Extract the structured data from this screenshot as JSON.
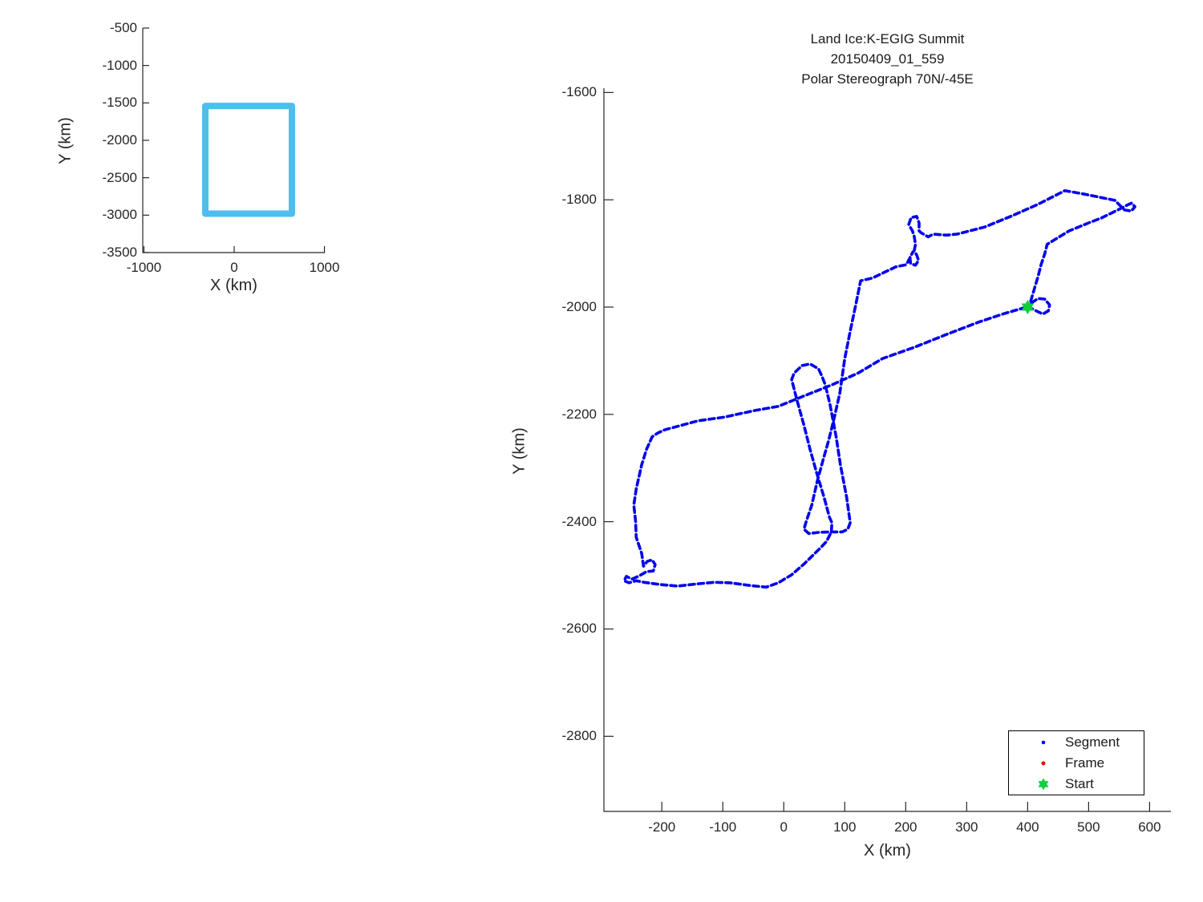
{
  "background_color": "#ffffff",
  "chart_data": [
    {
      "id": "overview_map",
      "type": "line",
      "title": "",
      "xlabel": "X (km)",
      "ylabel": "Y (km)",
      "xlim": [
        -1013,
        1004
      ],
      "ylim": [
        -3500,
        -500
      ],
      "xticks": [
        -1000,
        0,
        1000
      ],
      "yticks": [
        -500,
        -1000,
        -1500,
        -2000,
        -2500,
        -3000,
        -3500
      ],
      "grid": false,
      "series": [
        {
          "name": "coverage-box",
          "color": "#4DBEEE",
          "linewidth": 8,
          "points": [
            [
              -320,
              -1540
            ],
            [
              640,
              -1540
            ],
            [
              640,
              -2980
            ],
            [
              -320,
              -2980
            ],
            [
              -320,
              -1540
            ]
          ]
        }
      ]
    },
    {
      "id": "flight-track",
      "type": "line",
      "title_lines": [
        "Land Ice:K-EGIG Summit",
        "20150409_01_559",
        "Polar Stereograph 70N/-45E"
      ],
      "xlabel": "X (km)",
      "ylabel": "Y (km)",
      "xlim": [
        -295,
        635
      ],
      "ylim": [
        -2940,
        -1592
      ],
      "xticks": [
        -200,
        -100,
        0,
        100,
        200,
        300,
        400,
        500,
        600
      ],
      "yticks": [
        -1600,
        -1800,
        -2000,
        -2200,
        -2400,
        -2600,
        -2800
      ],
      "grid": false,
      "axis_color": "#262626",
      "legend": [
        {
          "label": "Segment",
          "color": "#0000EE",
          "marker": "dot"
        },
        {
          "label": "Frame",
          "color": "#FF0000",
          "marker": "dot"
        },
        {
          "label": "Start",
          "color": "#10CE3C",
          "marker": "hexagram"
        }
      ],
      "legend_position": "bottom-right",
      "start_point": [
        400,
        -2000
      ],
      "series": [
        {
          "name": "Segment",
          "color": "#0000EE",
          "style": "dashed",
          "linewidth": 3.6,
          "points": [
            [
              400,
              -1999
            ],
            [
              414,
              -2007
            ],
            [
              425,
              -2013
            ],
            [
              434,
              -2007
            ],
            [
              436,
              -1996
            ],
            [
              428,
              -1985
            ],
            [
              417,
              -1984
            ],
            [
              408,
              -1991
            ],
            [
              404,
              -1993
            ],
            [
              411,
              -1966
            ],
            [
              417,
              -1943
            ],
            [
              422,
              -1921
            ],
            [
              428,
              -1901
            ],
            [
              432,
              -1883
            ],
            [
              442,
              -1876
            ],
            [
              468,
              -1858
            ],
            [
              500,
              -1843
            ],
            [
              521,
              -1834
            ],
            [
              553,
              -1816
            ],
            [
              563,
              -1810
            ],
            [
              571,
              -1806
            ],
            [
              576,
              -1813
            ],
            [
              570,
              -1821
            ],
            [
              559,
              -1819
            ],
            [
              543,
              -1801
            ],
            [
              517,
              -1795
            ],
            [
              491,
              -1789
            ],
            [
              461,
              -1783
            ],
            [
              416,
              -1809
            ],
            [
              372,
              -1831
            ],
            [
              329,
              -1851
            ],
            [
              284,
              -1864
            ],
            [
              267,
              -1866
            ],
            [
              245,
              -1864
            ],
            [
              237,
              -1869
            ],
            [
              226,
              -1862
            ],
            [
              222,
              -1858
            ],
            [
              222,
              -1843
            ],
            [
              218,
              -1831
            ],
            [
              209,
              -1833
            ],
            [
              205,
              -1846
            ],
            [
              211,
              -1858
            ],
            [
              214,
              -1868
            ],
            [
              216,
              -1883
            ],
            [
              214,
              -1895
            ],
            [
              218,
              -1903
            ],
            [
              221,
              -1913
            ],
            [
              216,
              -1922
            ],
            [
              208,
              -1919
            ],
            [
              207,
              -1907
            ],
            [
              212,
              -1897
            ],
            [
              201,
              -1921
            ],
            [
              184,
              -1925
            ],
            [
              145,
              -1946
            ],
            [
              126,
              -1951
            ],
            [
              118,
              -1996
            ],
            [
              109,
              -2045
            ],
            [
              100,
              -2096
            ],
            [
              92,
              -2160
            ],
            [
              83,
              -2205
            ],
            [
              74,
              -2247
            ],
            [
              64,
              -2287
            ],
            [
              55,
              -2324
            ],
            [
              46,
              -2369
            ],
            [
              37,
              -2399
            ],
            [
              33,
              -2414
            ],
            [
              41,
              -2422
            ],
            [
              57,
              -2420
            ],
            [
              79,
              -2419
            ],
            [
              96,
              -2419
            ],
            [
              105,
              -2414
            ],
            [
              109,
              -2402
            ],
            [
              103,
              -2354
            ],
            [
              93,
              -2295
            ],
            [
              86,
              -2242
            ],
            [
              76,
              -2182
            ],
            [
              68,
              -2145
            ],
            [
              63,
              -2130
            ],
            [
              57,
              -2115
            ],
            [
              43,
              -2106
            ],
            [
              30,
              -2109
            ],
            [
              17,
              -2123
            ],
            [
              13,
              -2135
            ],
            [
              22,
              -2175
            ],
            [
              33,
              -2220
            ],
            [
              43,
              -2265
            ],
            [
              54,
              -2309
            ],
            [
              66,
              -2354
            ],
            [
              75,
              -2392
            ],
            [
              79,
              -2402
            ],
            [
              78,
              -2419
            ],
            [
              70,
              -2437
            ],
            [
              61,
              -2448
            ],
            [
              34,
              -2478
            ],
            [
              13,
              -2499
            ],
            [
              -9,
              -2514
            ],
            [
              -29,
              -2522
            ],
            [
              -55,
              -2519
            ],
            [
              -88,
              -2514
            ],
            [
              -114,
              -2513
            ],
            [
              -143,
              -2516
            ],
            [
              -174,
              -2520
            ],
            [
              -203,
              -2517
            ],
            [
              -229,
              -2513
            ],
            [
              -242,
              -2510
            ],
            [
              -254,
              -2514
            ],
            [
              -262,
              -2510
            ],
            [
              -258,
              -2502
            ],
            [
              -249,
              -2507
            ],
            [
              -237,
              -2501
            ],
            [
              -225,
              -2493
            ],
            [
              -214,
              -2492
            ],
            [
              -211,
              -2480
            ],
            [
              -216,
              -2471
            ],
            [
              -224,
              -2474
            ],
            [
              -230,
              -2483
            ],
            [
              -233,
              -2459
            ],
            [
              -242,
              -2429
            ],
            [
              -243,
              -2399
            ],
            [
              -246,
              -2369
            ],
            [
              -242,
              -2339
            ],
            [
              -233,
              -2294
            ],
            [
              -225,
              -2265
            ],
            [
              -216,
              -2242
            ],
            [
              -207,
              -2235
            ],
            [
              -196,
              -2229
            ],
            [
              -141,
              -2212
            ],
            [
              -97,
              -2205
            ],
            [
              -49,
              -2193
            ],
            [
              -9,
              -2185
            ],
            [
              30,
              -2167
            ],
            [
              79,
              -2145
            ],
            [
              122,
              -2123
            ],
            [
              162,
              -2096
            ],
            [
              214,
              -2075
            ],
            [
              267,
              -2051
            ],
            [
              320,
              -2028
            ],
            [
              359,
              -2013
            ],
            [
              386,
              -2004
            ],
            [
              395,
              -2001
            ],
            [
              400,
              -1999
            ]
          ]
        }
      ]
    }
  ]
}
